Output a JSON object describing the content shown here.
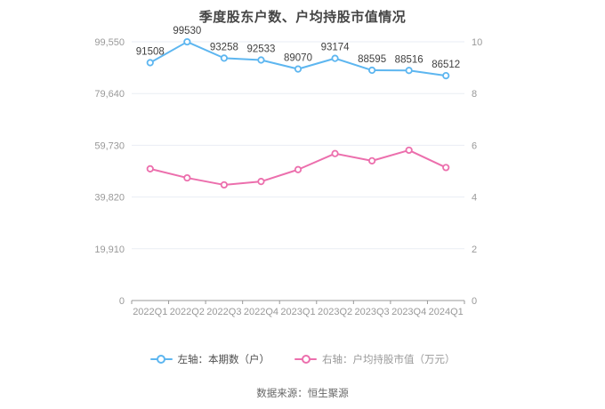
{
  "title": "季度股东户数、户均持股市值情况",
  "footer": {
    "source": "数据来源：恒生聚源"
  },
  "legend": {
    "items": [
      {
        "label": "左轴：本期数（户）",
        "color": "#5db6f0",
        "text_color": "#4d4d4d"
      },
      {
        "label": "右轴：户均持股市值（万元）",
        "color": "#ec6fad",
        "text_color": "#999999"
      }
    ]
  },
  "colors": {
    "blue_series": "#5db6f0",
    "pink_series": "#ec6fad",
    "grid_line": "#e9edf4",
    "axis_line": "#999999",
    "tick_label": "#999999",
    "data_label": "#404040",
    "title_text": "#454545"
  },
  "chart_data": {
    "type": "line",
    "title": "季度股东户数、户均持股市值情况",
    "categories": [
      "2022Q1",
      "2022Q2",
      "2022Q3",
      "2022Q4",
      "2023Q1",
      "2023Q2",
      "2023Q3",
      "2023Q4",
      "2024Q1"
    ],
    "series": [
      {
        "name": "左轴：本期数（户）",
        "axis": "left",
        "color": "#5db6f0",
        "values": [
          91508,
          99530,
          93258,
          92533,
          89070,
          93174,
          88595,
          88516,
          86512
        ],
        "data_labels": true
      },
      {
        "name": "右轴：户均持股市值（万元）",
        "axis": "right",
        "color": "#ec6fad",
        "values": [
          5.09,
          4.74,
          4.47,
          4.6,
          5.06,
          5.68,
          5.4,
          5.81,
          5.14
        ],
        "data_labels": false
      }
    ],
    "left_axis": {
      "min": 0,
      "max": 99550,
      "ticks": [
        0,
        19910,
        39820,
        59730,
        79640,
        99550
      ],
      "tick_labels": [
        "0",
        "19,910",
        "39,820",
        "59,730",
        "79,640",
        "99,550"
      ]
    },
    "right_axis": {
      "min": 0,
      "max": 10,
      "ticks": [
        0,
        2,
        4,
        6,
        8,
        10
      ],
      "tick_labels": [
        "0",
        "2",
        "4",
        "6",
        "8",
        "10"
      ]
    },
    "grid": true,
    "legend_position": "bottom",
    "xlabel": "",
    "ylabel_left": "本期数（户）",
    "ylabel_right": "户均持股市值（万元）"
  }
}
